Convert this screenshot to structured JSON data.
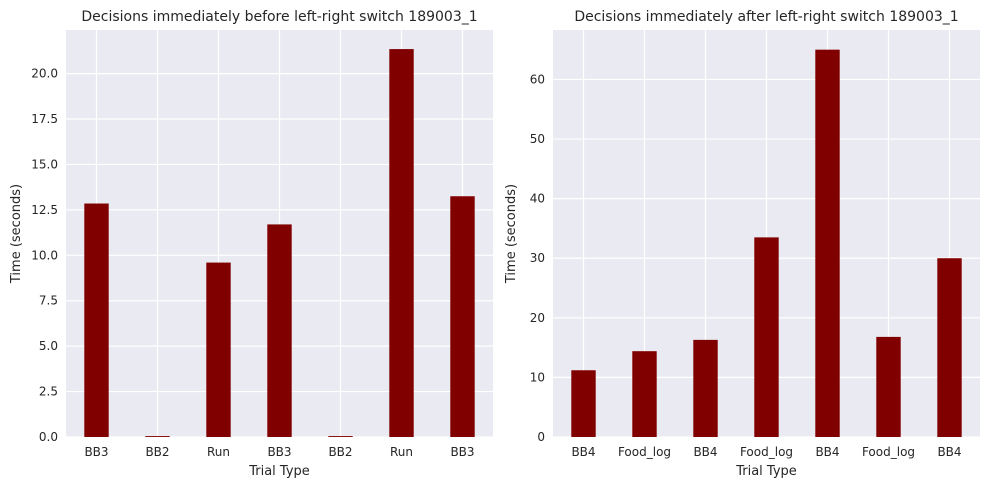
{
  "chart_data": [
    {
      "type": "bar",
      "title": "Decisions immediately before left-right switch 189003_1",
      "xlabel": "Trial Type",
      "ylabel": "Time (seconds)",
      "categories": [
        "BB3",
        "BB2",
        "Run",
        "BB3",
        "BB2",
        "Run",
        "BB3"
      ],
      "values": [
        12.85,
        0.05,
        9.6,
        11.7,
        0.05,
        21.35,
        13.25
      ],
      "ylim": [
        0,
        22.4
      ],
      "yticks": [
        0.0,
        2.5,
        5.0,
        7.5,
        10.0,
        12.5,
        15.0,
        17.5,
        20.0
      ],
      "ytick_labels": [
        "0.0",
        "2.5",
        "5.0",
        "7.5",
        "10.0",
        "12.5",
        "15.0",
        "17.5",
        "20.0"
      ],
      "bar_color": "#800000",
      "grid": true
    },
    {
      "type": "bar",
      "title": "Decisions immediately after left-right switch 189003_1",
      "xlabel": "Trial Type",
      "ylabel": "Time (seconds)",
      "categories": [
        "BB4",
        "Food_log",
        "BB4",
        "Food_log",
        "BB4",
        "Food_log",
        "BB4"
      ],
      "values": [
        11.2,
        14.4,
        16.3,
        33.5,
        65.0,
        16.8,
        30.0
      ],
      "ylim": [
        0,
        68.3
      ],
      "yticks": [
        0,
        10,
        20,
        30,
        40,
        50,
        60
      ],
      "ytick_labels": [
        "0",
        "10",
        "20",
        "30",
        "40",
        "50",
        "60"
      ],
      "bar_color": "#800000",
      "grid": true
    }
  ]
}
